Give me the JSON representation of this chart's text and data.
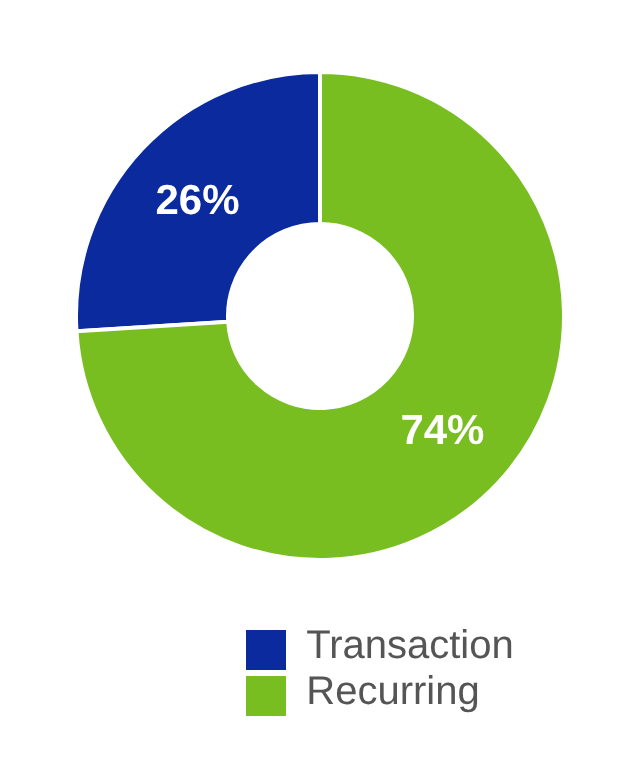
{
  "chart_data": {
    "type": "donut",
    "categories": [
      "Transaction",
      "Recurring"
    ],
    "values": [
      26,
      74
    ],
    "colors": [
      "#0a2a9e",
      "#78be20"
    ],
    "value_labels": [
      "26%",
      "74%"
    ],
    "legend": "bottom"
  }
}
